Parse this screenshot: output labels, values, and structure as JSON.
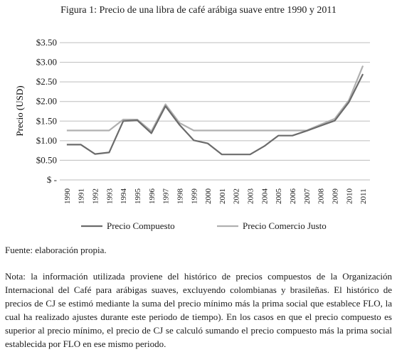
{
  "figure_title": "Figura 1: Precio de una libra de café arábiga suave entre 1990 y 2011",
  "source": "Fuente: elaboración propia.",
  "note": "Nota: la información utilizada proviene del histórico de precios compuestos de la Organización Internacional del Café para arábigas suaves, excluyendo colombianas y brasileñas. El histórico de precios de CJ se estimó mediante la suma del precio mínimo más la prima social que establece FLO, la cual ha realizado ajustes durante este periodo de tiempo). En los casos en que el precio compuesto es superior al precio mínimo, el precio de CJ se calculó sumando el precio compuesto más la prima social establecida por FLO en ese mismo periodo.",
  "chart_data": {
    "type": "line",
    "title": "Figura 1: Precio de una libra de café arábiga suave entre 1990 y 2011",
    "xlabel": "",
    "ylabel": "Precio (USD)",
    "ylim": [
      0,
      3.5
    ],
    "yticks": [
      0,
      0.5,
      1.0,
      1.5,
      2.0,
      2.5,
      3.0,
      3.5
    ],
    "ytick_labels": [
      "$ -",
      "$0.50",
      "$1.00",
      "$1.50",
      "$2.00",
      "$2.50",
      "$3.00",
      "$3.50"
    ],
    "grid": "horizontal",
    "legend_position": "bottom",
    "categories": [
      "1990",
      "1991",
      "1992",
      "1993",
      "1994",
      "1995",
      "1996",
      "1997",
      "1998",
      "1999",
      "2000",
      "2001",
      "2002",
      "2003",
      "2004",
      "2005",
      "2006",
      "2007",
      "2008",
      "2009",
      "2010",
      "2011"
    ],
    "series": [
      {
        "name": "Precio Compuesto",
        "color": "#6b6b6b",
        "values": [
          0.9,
          0.9,
          0.66,
          0.7,
          1.5,
          1.52,
          1.19,
          1.88,
          1.4,
          1.01,
          0.93,
          0.65,
          0.65,
          0.65,
          0.86,
          1.13,
          1.13,
          1.25,
          1.38,
          1.51,
          1.98,
          2.7
        ]
      },
      {
        "name": "Precio Comercio Justo",
        "color": "#b0b0b0",
        "values": [
          1.26,
          1.26,
          1.26,
          1.26,
          1.54,
          1.54,
          1.24,
          1.93,
          1.45,
          1.26,
          1.26,
          1.26,
          1.26,
          1.26,
          1.26,
          1.26,
          1.26,
          1.26,
          1.41,
          1.56,
          2.03,
          2.91
        ]
      }
    ]
  }
}
